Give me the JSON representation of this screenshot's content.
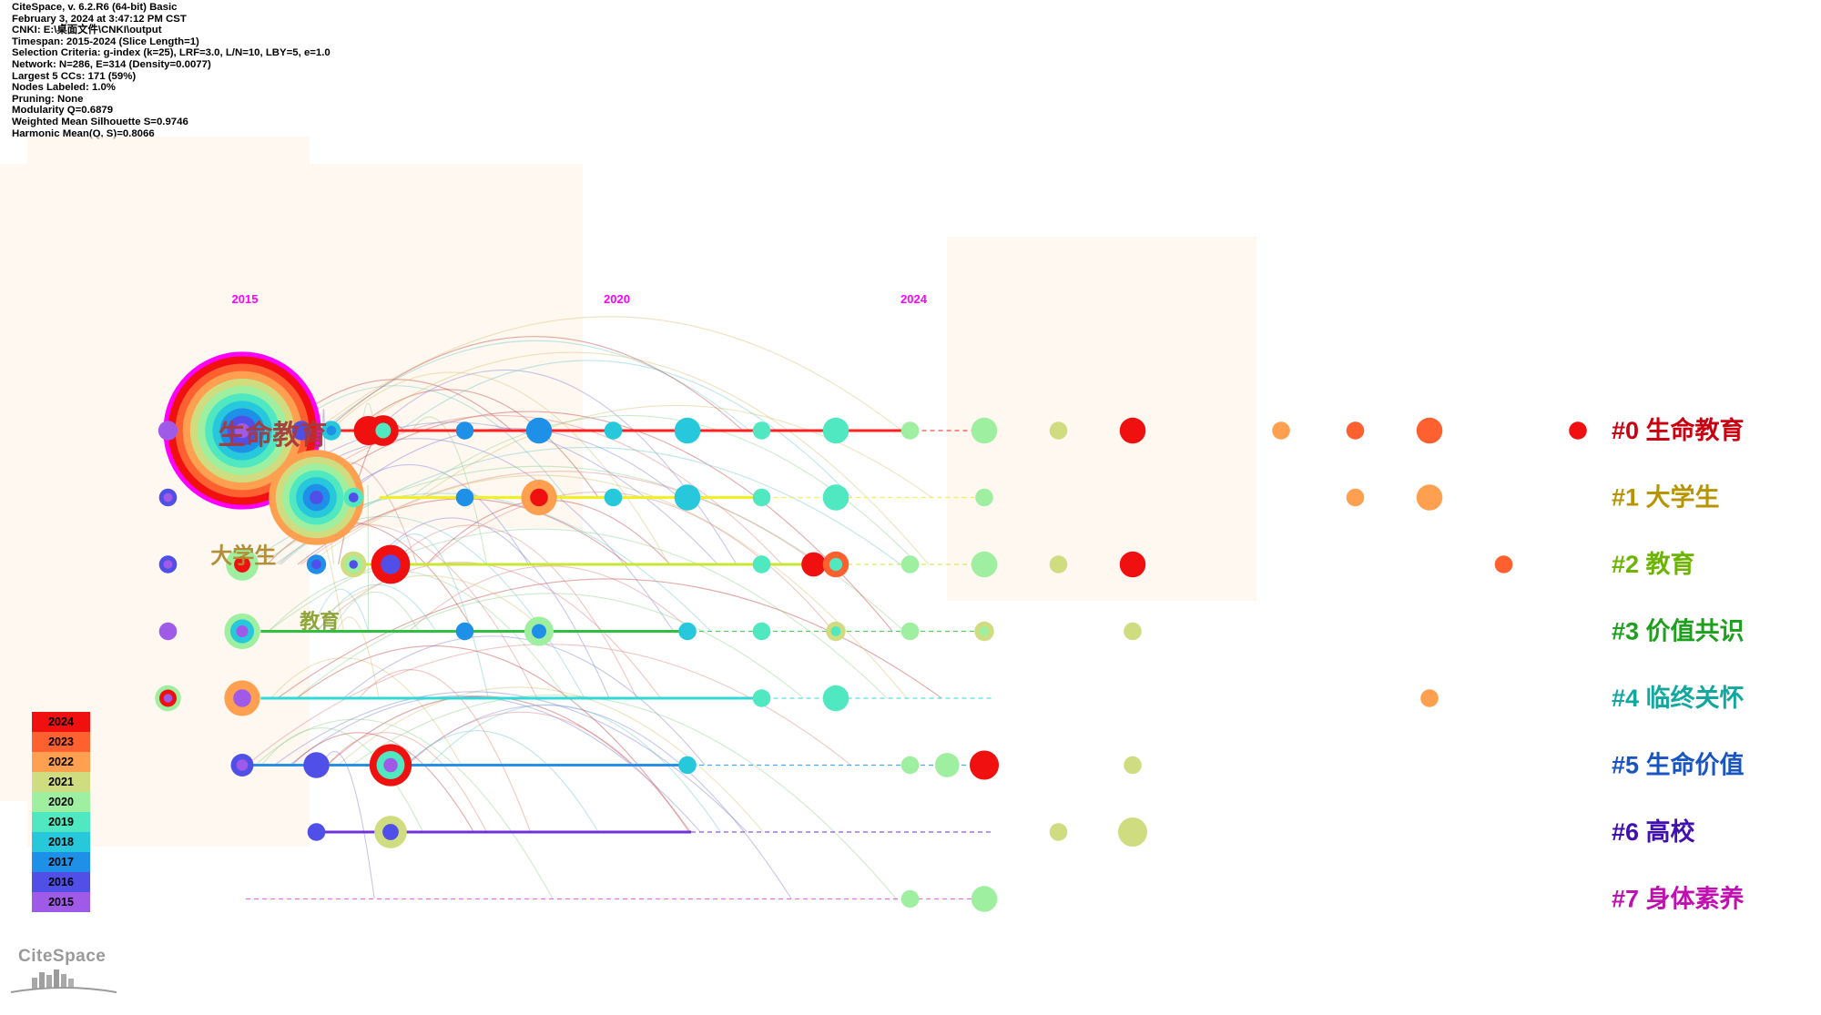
{
  "info_lines": [
    "CiteSpace, v. 6.2.R6 (64-bit) Basic",
    "February 3, 2024 at 3:47:12 PM CST",
    "CNKI: E:\\桌面文件\\CNKI\\output",
    "Timespan: 2015-2024 (Slice Length=1)",
    "Selection Criteria: g-index (k=25), LRF=3.0, L/N=10, LBY=5, e=1.0",
    "Network: N=286, E=314 (Density=0.0077)",
    "Largest 5 CCs: 171 (59%)",
    "Nodes Labeled: 1.0%",
    "Pruning: None",
    "Modularity Q=0.6879",
    "Weighted Mean Silhouette S=0.9746",
    "Harmonic Mean(Q, S)=0.8066"
  ],
  "year_labels": [
    {
      "text": "2015",
      "year": 2015
    },
    {
      "text": "2020",
      "year": 2020
    },
    {
      "text": "2024",
      "year": 2024
    }
  ],
  "clusters": [
    {
      "label": "#0 生命教育",
      "color": "#c8000f",
      "line_color": "#ff2020",
      "start": 2015.9,
      "end": 2024.0,
      "dash_end": 2024.0
    },
    {
      "label": "#1 大学生",
      "color": "#b89400",
      "line_color": "#f2f020",
      "start": 2016.8,
      "end": 2022.0,
      "dash_end": 2024.0
    },
    {
      "label": "#2 教育",
      "color": "#6cb400",
      "line_color": "#c8e830",
      "start": 2016.3,
      "end": 2023.0,
      "dash_end": 2024.0
    },
    {
      "label": "#3 价值共识",
      "color": "#1ea01e",
      "line_color": "#30c040",
      "start": 2015.2,
      "end": 2021.0,
      "dash_end": 2024.0
    },
    {
      "label": "#4 临终关怀",
      "color": "#12a8a0",
      "line_color": "#30d8d8",
      "start": 2015.2,
      "end": 2022.0,
      "dash_end": 2024.0
    },
    {
      "label": "#5 生命价值",
      "color": "#1855c0",
      "line_color": "#2890e8",
      "start": 2015.0,
      "end": 2021.0,
      "dash_end": 2024.0
    },
    {
      "label": "#6 高校",
      "color": "#4010b0",
      "line_color": "#7030d8",
      "start": 2016.0,
      "end": 2021.0,
      "dash_end": 2024.0
    },
    {
      "label": "#7 身体素养",
      "color": "#c010b0",
      "line_color": "#e050d8",
      "start": 2015.0,
      "end": 2015.0,
      "dash_end": 2024.0
    }
  ],
  "big_labels": [
    {
      "text": "生命教育",
      "color": "#a83a3a"
    },
    {
      "text": "大学生",
      "color": "#b08a30"
    },
    {
      "text": "教育",
      "color": "#8aa030"
    }
  ],
  "nodes": [
    {
      "cluster": 0,
      "year": 2015,
      "rings": [
        2024,
        2023,
        2022,
        2021,
        2020,
        2019,
        2018,
        2017,
        2016,
        2015
      ],
      "size": 5.0
    },
    {
      "cluster": 0,
      "year": 2014.0,
      "rings": [
        2015
      ],
      "size": 0.6
    },
    {
      "cluster": 0,
      "year": 2015.8,
      "rings": [
        2016
      ],
      "size": 0.6
    },
    {
      "cluster": 0,
      "year": 2016.2,
      "rings": [
        2018,
        2017
      ],
      "size": 0.6
    },
    {
      "cluster": 0,
      "year": 2016.7,
      "rings": [
        2024
      ],
      "size": 0.9
    },
    {
      "cluster": 0,
      "year": 2016.9,
      "rings": [
        2024,
        2019
      ],
      "size": 0.95
    },
    {
      "cluster": 0,
      "year": 2018.0,
      "rings": [
        2017
      ],
      "size": 0.55
    },
    {
      "cluster": 0,
      "year": 2019.0,
      "rings": [
        2017
      ],
      "size": 0.8
    },
    {
      "cluster": 0,
      "year": 2020.0,
      "rings": [
        2018
      ],
      "size": 0.55
    },
    {
      "cluster": 0,
      "year": 2021.0,
      "rings": [
        2018
      ],
      "size": 0.8
    },
    {
      "cluster": 0,
      "year": 2022.0,
      "rings": [
        2019
      ],
      "size": 0.55
    },
    {
      "cluster": 0,
      "year": 2023.0,
      "rings": [
        2019
      ],
      "size": 0.8
    },
    {
      "cluster": 0,
      "year": 2024.0,
      "rings": [
        2020
      ],
      "size": 0.55
    },
    {
      "cluster": 0,
      "year": 2025.0,
      "rings": [
        2020
      ],
      "size": 0.8
    },
    {
      "cluster": 0,
      "year": 2026.0,
      "rings": [
        2021
      ],
      "size": 0.55
    },
    {
      "cluster": 0,
      "year": 2027.0,
      "rings": [
        2024
      ],
      "size": 0.8
    },
    {
      "cluster": 0,
      "year": 2029.0,
      "rings": [
        2022
      ],
      "size": 0.55
    },
    {
      "cluster": 0,
      "year": 2030.0,
      "rings": [
        2023
      ],
      "size": 0.55
    },
    {
      "cluster": 0,
      "year": 2031.0,
      "rings": [
        2023
      ],
      "size": 0.8
    },
    {
      "cluster": 0,
      "year": 2033.0,
      "rings": [
        2024
      ],
      "size": 0.55
    },
    {
      "cluster": 1,
      "year": 2016.0,
      "rings": [
        2022,
        2021,
        2020,
        2019,
        2018,
        2017,
        2016
      ],
      "size": 3.2
    },
    {
      "cluster": 1,
      "year": 2014.0,
      "rings": [
        2016,
        2015
      ],
      "size": 0.55
    },
    {
      "cluster": 1,
      "year": 2016.5,
      "rings": [
        2019,
        2016
      ],
      "size": 0.6
    },
    {
      "cluster": 1,
      "year": 2018.0,
      "rings": [
        2017
      ],
      "size": 0.55
    },
    {
      "cluster": 1,
      "year": 2019.0,
      "rings": [
        2022,
        2024
      ],
      "size": 1.1
    },
    {
      "cluster": 1,
      "year": 2020.0,
      "rings": [
        2018
      ],
      "size": 0.55
    },
    {
      "cluster": 1,
      "year": 2021.0,
      "rings": [
        2018
      ],
      "size": 0.8
    },
    {
      "cluster": 1,
      "year": 2022.0,
      "rings": [
        2019
      ],
      "size": 0.55
    },
    {
      "cluster": 1,
      "year": 2023.0,
      "rings": [
        2019
      ],
      "size": 0.8
    },
    {
      "cluster": 1,
      "year": 2025.0,
      "rings": [
        2020
      ],
      "size": 0.55
    },
    {
      "cluster": 1,
      "year": 2030.0,
      "rings": [
        2022
      ],
      "size": 0.55
    },
    {
      "cluster": 1,
      "year": 2031.0,
      "rings": [
        2022
      ],
      "size": 0.8
    },
    {
      "cluster": 2,
      "year": 2015.0,
      "rings": [
        2020,
        2024
      ],
      "size": 1.0
    },
    {
      "cluster": 2,
      "year": 2014.0,
      "rings": [
        2016,
        2015
      ],
      "size": 0.55
    },
    {
      "cluster": 2,
      "year": 2016.0,
      "rings": [
        2017,
        2016
      ],
      "size": 0.6
    },
    {
      "cluster": 2,
      "year": 2016.5,
      "rings": [
        2021,
        2020,
        2016
      ],
      "size": 0.8
    },
    {
      "cluster": 2,
      "year": 2017.0,
      "rings": [
        2024,
        2016
      ],
      "size": 1.2
    },
    {
      "cluster": 2,
      "year": 2022.0,
      "rings": [
        2019
      ],
      "size": 0.55
    },
    {
      "cluster": 2,
      "year": 2022.7,
      "rings": [
        2024
      ],
      "size": 0.75
    },
    {
      "cluster": 2,
      "year": 2023.0,
      "rings": [
        2023,
        2019
      ],
      "size": 0.8
    },
    {
      "cluster": 2,
      "year": 2024.0,
      "rings": [
        2020
      ],
      "size": 0.55
    },
    {
      "cluster": 2,
      "year": 2025.0,
      "rings": [
        2020
      ],
      "size": 0.8
    },
    {
      "cluster": 2,
      "year": 2026.0,
      "rings": [
        2021
      ],
      "size": 0.55
    },
    {
      "cluster": 2,
      "year": 2027.0,
      "rings": [
        2024
      ],
      "size": 0.8
    },
    {
      "cluster": 2,
      "year": 2032.0,
      "rings": [
        2023
      ],
      "size": 0.55
    },
    {
      "cluster": 3,
      "year": 2014.0,
      "rings": [
        2015
      ],
      "size": 0.55
    },
    {
      "cluster": 3,
      "year": 2015.0,
      "rings": [
        2020,
        2018,
        2015
      ],
      "size": 1.1
    },
    {
      "cluster": 3,
      "year": 2018.0,
      "rings": [
        2017
      ],
      "size": 0.55
    },
    {
      "cluster": 3,
      "year": 2019.0,
      "rings": [
        2020,
        2017
      ],
      "size": 0.9
    },
    {
      "cluster": 3,
      "year": 2021.0,
      "rings": [
        2018
      ],
      "size": 0.55
    },
    {
      "cluster": 3,
      "year": 2022.0,
      "rings": [
        2019
      ],
      "size": 0.55
    },
    {
      "cluster": 3,
      "year": 2023.0,
      "rings": [
        2021,
        2019
      ],
      "size": 0.6
    },
    {
      "cluster": 3,
      "year": 2024.0,
      "rings": [
        2020
      ],
      "size": 0.55
    },
    {
      "cluster": 3,
      "year": 2025.0,
      "rings": [
        2021,
        2020
      ],
      "size": 0.6
    },
    {
      "cluster": 3,
      "year": 2027.0,
      "rings": [
        2021
      ],
      "size": 0.55
    },
    {
      "cluster": 4,
      "year": 2014.0,
      "rings": [
        2020,
        2024,
        2015
      ],
      "size": 0.8
    },
    {
      "cluster": 4,
      "year": 2015.0,
      "rings": [
        2022,
        2015
      ],
      "size": 1.1
    },
    {
      "cluster": 4,
      "year": 2022.0,
      "rings": [
        2019
      ],
      "size": 0.55
    },
    {
      "cluster": 4,
      "year": 2023.0,
      "rings": [
        2019
      ],
      "size": 0.8
    },
    {
      "cluster": 4,
      "year": 2031.0,
      "rings": [
        2022
      ],
      "size": 0.55
    },
    {
      "cluster": 5,
      "year": 2015.0,
      "rings": [
        2016,
        2015
      ],
      "size": 0.7
    },
    {
      "cluster": 5,
      "year": 2016.0,
      "rings": [
        2016
      ],
      "size": 0.8
    },
    {
      "cluster": 5,
      "year": 2017.0,
      "rings": [
        2024,
        2019,
        2015
      ],
      "size": 1.3
    },
    {
      "cluster": 5,
      "year": 2021.0,
      "rings": [
        2018
      ],
      "size": 0.55
    },
    {
      "cluster": 5,
      "year": 2024.0,
      "rings": [
        2020
      ],
      "size": 0.55
    },
    {
      "cluster": 5,
      "year": 2024.5,
      "rings": [
        2020
      ],
      "size": 0.75
    },
    {
      "cluster": 5,
      "year": 2025.0,
      "rings": [
        2024
      ],
      "size": 0.9
    },
    {
      "cluster": 5,
      "year": 2027.0,
      "rings": [
        2021
      ],
      "size": 0.55
    },
    {
      "cluster": 6,
      "year": 2016.0,
      "rings": [
        2016
      ],
      "size": 0.55
    },
    {
      "cluster": 6,
      "year": 2017.0,
      "rings": [
        2021,
        2016
      ],
      "size": 1.0
    },
    {
      "cluster": 6,
      "year": 2026.0,
      "rings": [
        2021
      ],
      "size": 0.55
    },
    {
      "cluster": 6,
      "year": 2027.0,
      "rings": [
        2021
      ],
      "size": 0.9
    },
    {
      "cluster": 7,
      "year": 2024.0,
      "rings": [
        2020
      ],
      "size": 0.55
    },
    {
      "cluster": 7,
      "year": 2025.0,
      "rings": [
        2020
      ],
      "size": 0.8
    }
  ],
  "legend_years": [
    2024,
    2023,
    2022,
    2021,
    2020,
    2019,
    2018,
    2017,
    2016,
    2015
  ],
  "year_colors": {
    "2015": "#a05ae8",
    "2016": "#5050e8",
    "2017": "#1e90e8",
    "2018": "#28c8dc",
    "2019": "#50e8c0",
    "2020": "#9ef0a0",
    "2021": "#d0dc80",
    "2022": "#ffa050",
    "2023": "#ff6030",
    "2024": "#f01010"
  },
  "outer_ring_color": "#ff00ff",
  "year_label_color": "#ff00ff",
  "logo_text": "CiteSpace"
}
